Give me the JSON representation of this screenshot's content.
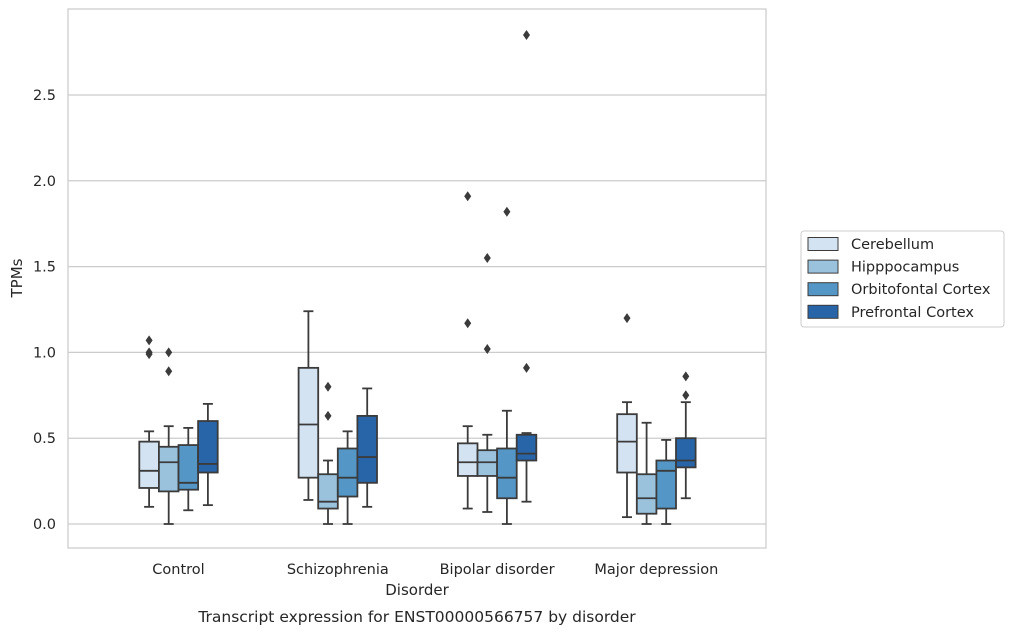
{
  "chart_data": {
    "type": "boxplot",
    "caption": "Transcript expression for ENST00000566757 by disorder",
    "xlabel": "Disorder",
    "ylabel": "TPMs",
    "ylim": [
      -0.14,
      2.98
    ],
    "yticks": [
      0.0,
      0.5,
      1.0,
      1.5,
      2.0,
      2.5
    ],
    "ytick_labels": [
      "0.0",
      "0.5",
      "1.0",
      "1.5",
      "2.0",
      "2.5"
    ],
    "grid": "horizontal",
    "legend_position": "right",
    "categories": [
      "Control",
      "Schizophrenia",
      "Bipolar disorder",
      "Major depression"
    ],
    "series": [
      {
        "name": "Cerebellum",
        "color": "#d4e3f2",
        "boxes": [
          {
            "whislo": 0.1,
            "q1": 0.21,
            "med": 0.31,
            "q3": 0.48,
            "whishi": 0.54,
            "fliers": [
              1.07,
              1.0,
              0.99
            ]
          },
          {
            "whislo": 0.14,
            "q1": 0.27,
            "med": 0.58,
            "q3": 0.91,
            "whishi": 1.24,
            "fliers": []
          },
          {
            "whislo": 0.09,
            "q1": 0.28,
            "med": 0.36,
            "q3": 0.47,
            "whishi": 0.57,
            "fliers": [
              1.91,
              1.17
            ]
          },
          {
            "whislo": 0.04,
            "q1": 0.3,
            "med": 0.48,
            "q3": 0.64,
            "whishi": 0.71,
            "fliers": [
              1.2
            ]
          }
        ]
      },
      {
        "name": "Hipppocampus",
        "color": "#9bc2dd",
        "boxes": [
          {
            "whislo": 0.0,
            "q1": 0.19,
            "med": 0.36,
            "q3": 0.45,
            "whishi": 0.57,
            "fliers": [
              1.0,
              0.89
            ]
          },
          {
            "whislo": 0.0,
            "q1": 0.09,
            "med": 0.13,
            "q3": 0.29,
            "whishi": 0.37,
            "fliers": [
              0.8,
              0.63
            ]
          },
          {
            "whislo": 0.07,
            "q1": 0.28,
            "med": 0.36,
            "q3": 0.43,
            "whishi": 0.52,
            "fliers": [
              1.55,
              1.02
            ]
          },
          {
            "whislo": 0.0,
            "q1": 0.06,
            "med": 0.15,
            "q3": 0.29,
            "whishi": 0.59,
            "fliers": []
          }
        ]
      },
      {
        "name": "Orbitofontal Cortex",
        "color": "#5497c6",
        "boxes": [
          {
            "whislo": 0.08,
            "q1": 0.2,
            "med": 0.24,
            "q3": 0.46,
            "whishi": 0.56,
            "fliers": []
          },
          {
            "whislo": 0.0,
            "q1": 0.16,
            "med": 0.27,
            "q3": 0.44,
            "whishi": 0.54,
            "fliers": []
          },
          {
            "whislo": 0.0,
            "q1": 0.15,
            "med": 0.27,
            "q3": 0.44,
            "whishi": 0.66,
            "fliers": [
              1.82
            ]
          },
          {
            "whislo": 0.0,
            "q1": 0.09,
            "med": 0.31,
            "q3": 0.37,
            "whishi": 0.49,
            "fliers": []
          }
        ]
      },
      {
        "name": "Prefrontal Cortex",
        "color": "#2765a8",
        "boxes": [
          {
            "whislo": 0.11,
            "q1": 0.3,
            "med": 0.35,
            "q3": 0.6,
            "whishi": 0.7,
            "fliers": []
          },
          {
            "whislo": 0.1,
            "q1": 0.24,
            "med": 0.39,
            "q3": 0.63,
            "whishi": 0.79,
            "fliers": []
          },
          {
            "whislo": 0.13,
            "q1": 0.37,
            "med": 0.41,
            "q3": 0.52,
            "whishi": 0.53,
            "fliers": [
              2.85,
              0.91
            ]
          },
          {
            "whislo": 0.15,
            "q1": 0.33,
            "med": 0.37,
            "q3": 0.5,
            "whishi": 0.71,
            "fliers": [
              0.86,
              0.75
            ]
          }
        ]
      }
    ]
  }
}
